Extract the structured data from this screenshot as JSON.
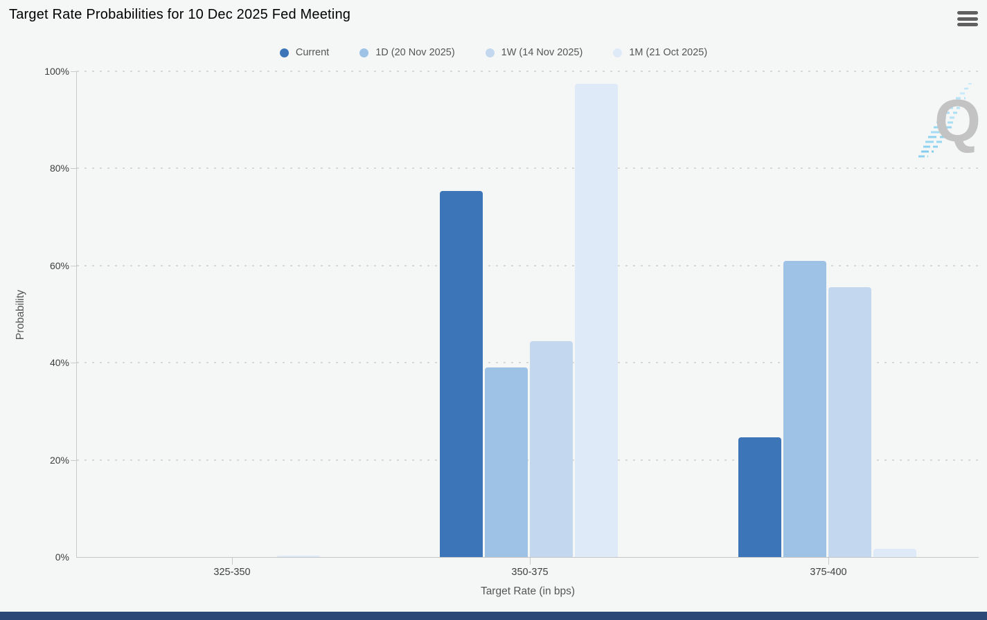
{
  "page": {
    "title": "Target Rate Probabilities for 10 Dec 2025 Fed Meeting",
    "menu_icon": "hamburger-menu-icon",
    "logo_letter": "Q",
    "footer_color": "#2b4876",
    "background": "#f5f6f6"
  },
  "chart_data": {
    "type": "bar",
    "title": "Target Rate Probabilities for 10 Dec 2025 Fed Meeting",
    "xlabel": "Target Rate (in bps)",
    "ylabel": "Probability",
    "ylim": [
      0,
      100
    ],
    "y_ticks": [
      "0%",
      "20%",
      "40%",
      "60%",
      "80%",
      "100%"
    ],
    "y_tick_values": [
      0,
      20,
      40,
      60,
      80,
      100
    ],
    "grid": "dotted-horizontal",
    "legend_position": "top",
    "categories": [
      "325-350",
      "350-375",
      "375-400"
    ],
    "series": [
      {
        "name": "Current",
        "color": "#3c76b8",
        "values": [
          0,
          75.3,
          24.7
        ]
      },
      {
        "name": "1D (20 Nov 2025)",
        "color": "#9dc2e6",
        "values": [
          0,
          39.1,
          60.9
        ]
      },
      {
        "name": "1W (14 Nov 2025)",
        "color": "#c3d7ef",
        "values": [
          0,
          44.4,
          55.6
        ]
      },
      {
        "name": "1M (21 Oct 2025)",
        "color": "#dfeaf8",
        "values": [
          0.3,
          97.4,
          1.7
        ]
      }
    ]
  }
}
